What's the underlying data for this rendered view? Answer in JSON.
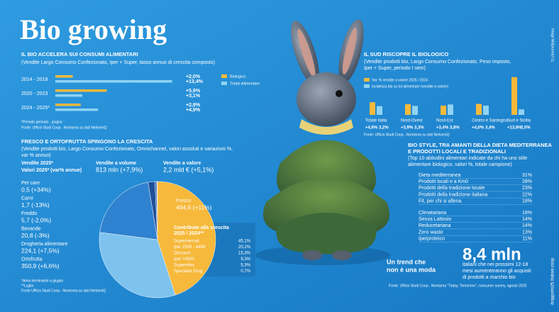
{
  "header": {
    "title": "Bio growing",
    "credit": "Image Midjourney/ LL",
    "tag": "#rapporto25 Italiani.coop"
  },
  "chart_data": [
    {
      "type": "bar",
      "orientation": "horizontal",
      "title": "IL BIO ACCELERA SUI CONSUMI ALIMENTARI",
      "subtitle": [
        "(Vendite Largo Consumo Confezionato, Iper + Super, tasso annuo di crescita composto)"
      ],
      "categories": [
        "2014 - 2018",
        "2020 - 2023",
        "2024 - 2025*"
      ],
      "series": [
        {
          "name": "Biologico",
          "color": "#f6b93b",
          "values": [
            2.0,
            5.9,
            2.9
          ],
          "value_labels": [
            "+2,0%",
            "+5,9%",
            "+2,9%"
          ]
        },
        {
          "name": "Totale Alimentare",
          "color": "#8fd3f4",
          "values": [
            13.4,
            3.1,
            4.9
          ],
          "value_labels": [
            "+13,4%",
            "+3,1%",
            "+4,9%"
          ]
        }
      ],
      "xlim": [
        0,
        14
      ],
      "notes": [
        "*Periodo gennaio - giugno",
        "Fonte: Ufficio Studi Coop - Nomisma su dati NielsenIQ"
      ]
    },
    {
      "type": "bar",
      "orientation": "vertical",
      "title": "IL SUD RISCOPRE IL BIOLOGICO",
      "subtitle": [
        "(Vendite prodotti bio, Largo Consumo Confezionato, Peso imposto,",
        "Iper + Super, periodo I sem)"
      ],
      "categories": [
        "Totale Italia",
        "Nord-Ovest",
        "Nord-Est",
        "Centro e Sardegna",
        "Sud e Sicilia"
      ],
      "series": [
        {
          "name": "Var. % vendite a valore 2025 / 2024",
          "color": "#f6b93b",
          "values": [
            4.6,
            3.9,
            3.4,
            4.0,
            13.8
          ],
          "value_labels": [
            "+4,6%",
            "+3,9%",
            "+3,4%",
            "+4,0%",
            "+13,8%"
          ]
        },
        {
          "name": "Incidenza bio su tot alimentare (vendite a valore)",
          "color": "#8fd3f4",
          "values": [
            3.2,
            3.3,
            3.8,
            3.4,
            2.0
          ],
          "value_labels": [
            "3,2%",
            "3,3%",
            "3,8%",
            "3,4%",
            "2,0%"
          ]
        }
      ],
      "ylim": [
        0,
        14
      ],
      "notes": [
        "Fonte: Ufficio Studi Coop - Nomisma su dati NielsenIQ"
      ]
    },
    {
      "type": "pie",
      "title": "FRESCO E ORTOFRUTTA SPINGONO LA CRESCITA",
      "subtitle": [
        "(Vendite prodotti bio, Largo Consumo Confezionato, Omnichannel, valori assoluti e variazioni %,",
        "var % annuo)"
      ],
      "categories": [
        "Pet care",
        "Carni",
        "Freddo",
        "Bevande",
        "Drogheria alimentare",
        "Ortofrutta",
        "Fresco"
      ],
      "values": [
        0.5,
        1.7,
        5.7,
        20.8,
        224.1,
        350.9,
        494.6
      ],
      "value_labels": [
        "0,5 (+34%)",
        "1,7 (-13%)",
        "5,7 (-2,0%)",
        "20,8 (-3%)",
        "224,1 (+7,5%)",
        "350,9 (+6,6%)",
        "494,6 (+11%)"
      ],
      "colors": [
        "#f28c28",
        "#e2522b",
        "#3d6fb0",
        "#1f4f99",
        "#2f82cf",
        "#7ec3ee",
        "#f6b93b"
      ],
      "notes": [
        "*Anno terminante a giugno",
        "**Luglio",
        "Fonte Ufficio Studi Coop - Nomisma su dati NielsenIQ"
      ]
    }
  ],
  "sales_summary": {
    "title": "Vendite 2025*",
    "subtitle": "Valori 2025* (var% annue)",
    "volume": {
      "label": "Vendite a volume",
      "value": "813 mln (+7,9%)"
    },
    "amount": {
      "label": "Vendite a valore",
      "value": "2,2 mld € (+5,1%)"
    }
  },
  "contribution": {
    "title": [
      "Contributo alla crescita",
      "2025 / 2024**"
    ],
    "rows": [
      [
        "Supermercati",
        "45,1%"
      ],
      [
        "Iper 2500 - 4499",
        "20,2%"
      ],
      [
        "Discount",
        "15,3%"
      ],
      [
        "Iper >4500",
        "9,3%"
      ],
      [
        "Superettes",
        "5,3%"
      ],
      [
        "Specialist Drug",
        "0,7%"
      ]
    ]
  },
  "bio_style": {
    "title": [
      "BIO STYLE, TRA AMANTI DELLA DIETA MEDITERRANEA",
      "E PRODOTTI LOCALI E TRADIZIONALI"
    ],
    "subtitle": [
      "(Top 10 abitudini alimentari indicate da chi ha uno stile",
      "alimentare biologico, valori %, totale campione)"
    ],
    "rows": [
      [
        "Dieta mediterranea",
        "31%"
      ],
      [
        "Prodotti locali e a Km0",
        "28%"
      ],
      [
        "Prodotti della tradizione locale",
        "23%"
      ],
      [
        "Prodotti della tradizione italiana",
        "22%"
      ],
      [
        "Fit, per chi si allena",
        "18%"
      ],
      [
        "Climatariana",
        "18%"
      ],
      [
        "Senza Lattosio",
        "14%"
      ],
      [
        "Reducetariana",
        "14%"
      ],
      [
        "Zero waste",
        "13%"
      ],
      [
        "Iperproteico",
        "11%"
      ]
    ]
  },
  "trend": {
    "tagline": [
      "Un trend che",
      "non è una moda"
    ],
    "figure": "8,4 mln",
    "text": [
      "italiani che nei prossimi 12-18",
      "mesi aumenteranno gli acquisti",
      "di prodotti a marchio bio"
    ],
    "source": "Fonte: Ufficio Studi Coop - Nomisma \"Today, Tomorrow\", consumer survey, agosto 2025"
  }
}
